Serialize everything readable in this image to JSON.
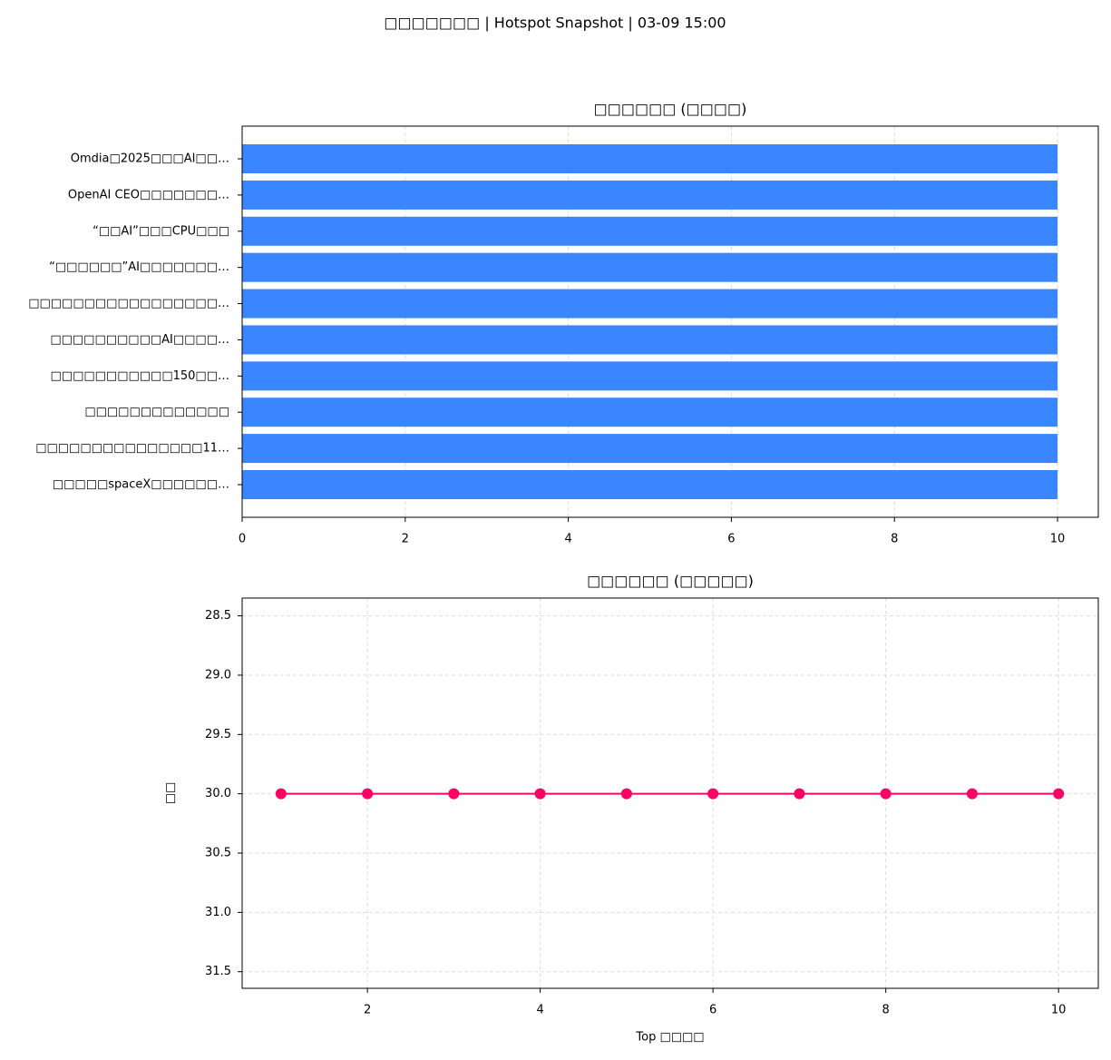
{
  "figure_title": "□□□□□□□ | Hotspot Snapshot | 03-09 15:00",
  "chart_data": [
    {
      "type": "barh",
      "title": "□□□□□□ (□□□□)",
      "categories": [
        "Omdia□2025□□□AI□□…",
        "OpenAI CEO□□□□□□□…",
        "“□□AI”□□□CPU□□□",
        "“□□□□□□”AI□□□□□□□…",
        "□□□□□□□□□□□□□□□□□…",
        "□□□□□□□□□□AI□□□□…",
        "□□□□□□□□□□□150□□…",
        "□□□□□□□□□□□□□",
        "□□□□□□□□□□□□□□□11…",
        "□□□□□spaceX□□□□□□…"
      ],
      "values": [
        10,
        10,
        10,
        10,
        10,
        10,
        10,
        10,
        10,
        10
      ],
      "color": "#3a86ff",
      "xlim": [
        0,
        10.5
      ],
      "xticks": [
        0,
        2,
        4,
        6,
        8,
        10
      ],
      "grid": true
    },
    {
      "type": "line",
      "title": "□□□□□□ (□□□□□)",
      "x_label": "Top □□□□",
      "y_label": "□□",
      "x": [
        1,
        2,
        3,
        4,
        5,
        6,
        7,
        8,
        9,
        10
      ],
      "series": [
        {
          "color": "#ff0066",
          "values": [
            30,
            30,
            30,
            30,
            30,
            30,
            30,
            30,
            30,
            30
          ]
        }
      ],
      "xlim": [
        0.55,
        10.46
      ],
      "xticks": [
        2,
        4,
        6,
        8,
        10
      ],
      "ylim": [
        31.64,
        28.35
      ],
      "y_inverted": true,
      "yticks": [
        28.5,
        {
          "value": 29,
          "label": "29.0"
        },
        29.5,
        {
          "value": 30,
          "label": "30.0"
        },
        30.5,
        {
          "value": 31,
          "label": "31.0"
        },
        31.5
      ],
      "grid": true
    }
  ]
}
